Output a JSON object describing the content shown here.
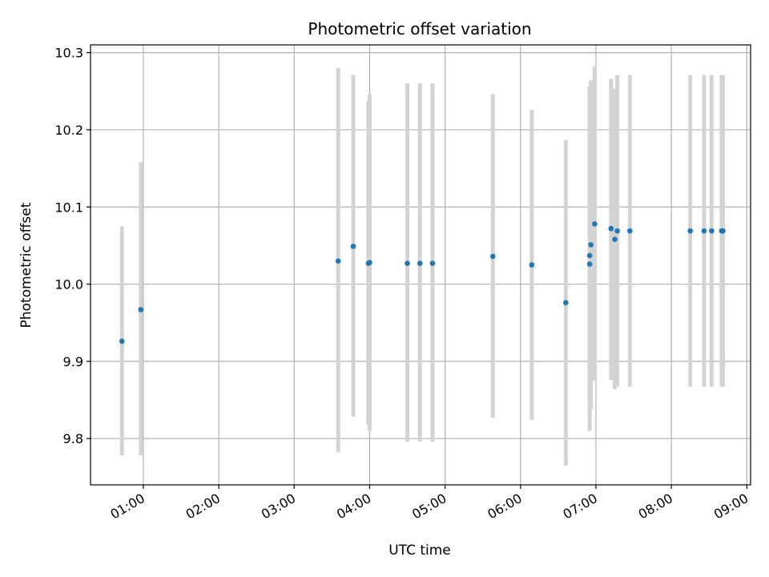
{
  "chart_data": {
    "type": "scatter",
    "title": "Photometric offset variation",
    "xlabel": "UTC time",
    "ylabel": "Photometric offset",
    "x_unit": "UTC time of day (HH:MM)",
    "xlim": [
      "00:18",
      "09:03"
    ],
    "ylim": [
      9.74,
      10.31
    ],
    "x_ticks": [
      "01:00",
      "02:00",
      "03:00",
      "04:00",
      "05:00",
      "06:00",
      "07:00",
      "08:00",
      "09:00"
    ],
    "y_ticks": [
      "9.8",
      "9.9",
      "10.0",
      "10.1",
      "10.2",
      "10.3"
    ],
    "grid": true,
    "point_color": "#1f77b4",
    "errorbar_color": "#d3d3d3",
    "points": [
      {
        "t": "00:43",
        "y": 9.926,
        "low": 9.778,
        "high": 10.075
      },
      {
        "t": "00:58",
        "y": 9.967,
        "low": 9.778,
        "high": 10.158
      },
      {
        "t": "03:35",
        "y": 10.03,
        "low": 9.782,
        "high": 10.28
      },
      {
        "t": "03:47",
        "y": 10.049,
        "low": 9.828,
        "high": 10.271
      },
      {
        "t": "03:59",
        "y": 10.027,
        "low": 9.818,
        "high": 10.237
      },
      {
        "t": "04:00",
        "y": 10.028,
        "low": 9.81,
        "high": 10.246
      },
      {
        "t": "04:30",
        "y": 10.027,
        "low": 9.796,
        "high": 10.26
      },
      {
        "t": "04:40",
        "y": 10.027,
        "low": 9.796,
        "high": 10.26
      },
      {
        "t": "04:50",
        "y": 10.027,
        "low": 9.796,
        "high": 10.26
      },
      {
        "t": "05:38",
        "y": 10.036,
        "low": 9.827,
        "high": 10.246
      },
      {
        "t": "06:09",
        "y": 10.025,
        "low": 9.824,
        "high": 10.226
      },
      {
        "t": "06:36",
        "y": 9.976,
        "low": 9.765,
        "high": 10.187
      },
      {
        "t": "06:55",
        "y": 10.037,
        "low": 9.838,
        "high": 10.256
      },
      {
        "t": "06:55",
        "y": 10.026,
        "low": 9.81,
        "high": 10.256
      },
      {
        "t": "06:56",
        "y": 10.051,
        "low": 9.838,
        "high": 10.264
      },
      {
        "t": "06:59",
        "y": 10.078,
        "low": 9.875,
        "high": 10.282
      },
      {
        "t": "07:12",
        "y": 10.072,
        "low": 9.876,
        "high": 10.266
      },
      {
        "t": "07:15",
        "y": 10.058,
        "low": 9.864,
        "high": 10.253
      },
      {
        "t": "07:17",
        "y": 10.069,
        "low": 9.867,
        "high": 10.271
      },
      {
        "t": "07:27",
        "y": 10.069,
        "low": 9.867,
        "high": 10.271
      },
      {
        "t": "08:15",
        "y": 10.069,
        "low": 9.867,
        "high": 10.271
      },
      {
        "t": "08:26",
        "y": 10.069,
        "low": 9.867,
        "high": 10.271
      },
      {
        "t": "08:32",
        "y": 10.069,
        "low": 9.867,
        "high": 10.271
      },
      {
        "t": "08:40",
        "y": 10.069,
        "low": 9.867,
        "high": 10.271
      },
      {
        "t": "08:41",
        "y": 10.069,
        "low": 9.867,
        "high": 10.271
      }
    ]
  }
}
